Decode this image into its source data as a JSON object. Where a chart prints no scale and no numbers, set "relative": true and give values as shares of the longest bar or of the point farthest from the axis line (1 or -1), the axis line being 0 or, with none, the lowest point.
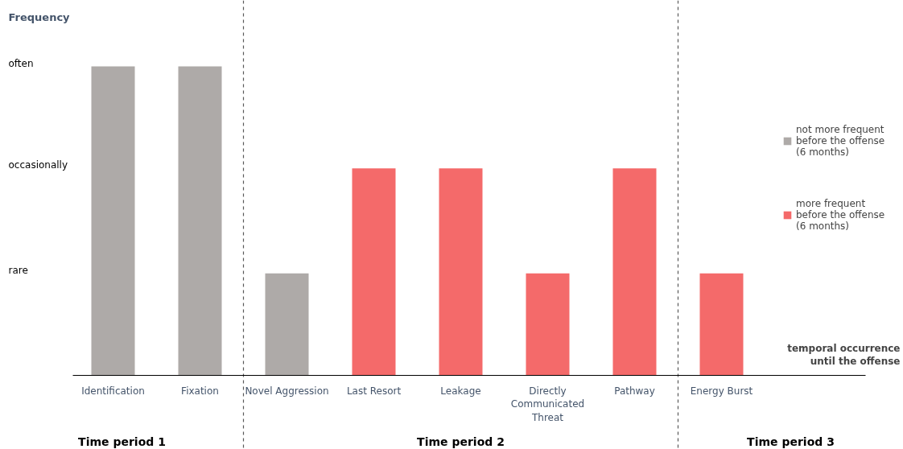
{
  "chart_data": {
    "type": "bar",
    "ylabel": "Frequency",
    "xlabel": "temporal occurrence until the offense",
    "categories": [
      "Identification",
      "Fixation",
      "Novel Aggression",
      "Last Resort",
      "Leakage",
      "Directly Communicated Threat",
      "Pathway",
      "Energy Burst"
    ],
    "series": [
      {
        "name": "not more frequent before the offense (6 months)",
        "color": "#aeaaa8",
        "values": [
          1,
          1,
          0.33,
          null,
          null,
          null,
          null,
          null
        ]
      },
      {
        "name": "more frequent before the offense (6 months)",
        "color": "#f46a6a",
        "values": [
          null,
          null,
          null,
          0.67,
          0.67,
          0.33,
          0.67,
          0.33
        ]
      }
    ],
    "relative": true,
    "annotations": [
      "often",
      "occasionally",
      "rare",
      "Time period 1",
      "Time period 2",
      "Time period 3"
    ],
    "grid": false,
    "legend": "right"
  }
}
